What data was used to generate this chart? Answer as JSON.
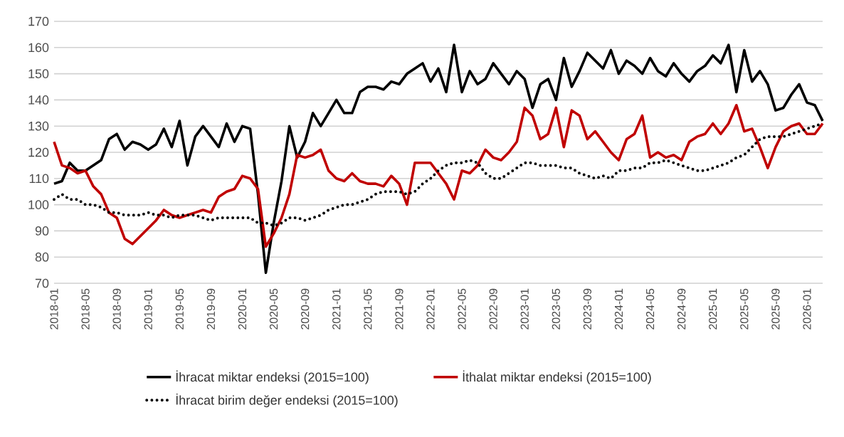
{
  "chart_data": {
    "type": "line",
    "x": [
      "2018-01",
      "2018-02",
      "2018-03",
      "2018-04",
      "2018-05",
      "2018-06",
      "2018-07",
      "2018-08",
      "2018-09",
      "2018-10",
      "2018-11",
      "2018-12",
      "2019-01",
      "2019-02",
      "2019-03",
      "2019-04",
      "2019-05",
      "2019-06",
      "2019-07",
      "2019-08",
      "2019-09",
      "2019-10",
      "2019-11",
      "2019-12",
      "2020-01",
      "2020-02",
      "2020-03",
      "2020-04",
      "2020-05",
      "2020-06",
      "2020-07",
      "2020-08",
      "2020-09",
      "2020-10",
      "2020-11",
      "2020-12",
      "2021-01",
      "2021-02",
      "2021-03",
      "2021-04",
      "2021-05",
      "2021-06",
      "2021-07",
      "2021-08",
      "2021-09",
      "2021-10",
      "2021-11",
      "2021-12",
      "2022-01",
      "2022-02",
      "2022-03",
      "2022-04",
      "2022-05",
      "2022-06",
      "2022-07",
      "2022-08",
      "2022-09",
      "2022-10",
      "2022-11",
      "2022-12",
      "2023-01",
      "2023-02",
      "2023-03",
      "2023-04",
      "2023-05",
      "2023-06",
      "2023-07",
      "2023-08",
      "2023-09",
      "2023-10",
      "2023-11",
      "2023-12",
      "2024-01",
      "2024-02",
      "2024-03",
      "2024-04",
      "2024-05",
      "2024-06",
      "2024-07",
      "2024-08",
      "2024-09",
      "2024-10",
      "2024-11",
      "2024-12",
      "2025-01",
      "2025-02",
      "2025-03",
      "2025-04",
      "2025-05",
      "2025-06",
      "2025-07",
      "2025-08",
      "2025-09",
      "2025-10",
      "2025-11",
      "2025-12",
      "2026-01",
      "2026-02",
      "2026-03"
    ],
    "series": [
      {
        "name": "İhracat miktar endeksi (2015=100)",
        "color": "#000000",
        "line_style": "solid",
        "values": [
          108,
          109,
          116,
          113,
          113,
          115,
          117,
          125,
          127,
          121,
          124,
          123,
          121,
          123,
          129,
          122,
          132,
          115,
          126,
          130,
          126,
          122,
          131,
          124,
          130,
          129,
          104,
          74,
          93,
          109,
          130,
          118,
          124,
          135,
          130,
          135,
          140,
          135,
          135,
          143,
          145,
          145,
          144,
          147,
          146,
          150,
          152,
          154,
          147,
          152,
          143,
          161,
          143,
          151,
          146,
          148,
          154,
          150,
          146,
          151,
          148,
          137,
          146,
          148,
          140,
          156,
          145,
          151,
          158,
          155,
          152,
          159,
          150,
          155,
          153,
          150,
          156,
          151,
          149,
          154,
          150,
          147,
          151,
          153,
          157,
          154,
          161,
          143,
          159,
          147,
          151,
          146,
          136,
          137,
          142,
          146,
          139,
          138,
          132
        ]
      },
      {
        "name": "İthalat miktar endeksi (2015=100)",
        "color": "#c00000",
        "line_style": "solid",
        "values": [
          124,
          115,
          114,
          112,
          113,
          107,
          104,
          97,
          95,
          87,
          85,
          88,
          91,
          94,
          98,
          96,
          95,
          96,
          97,
          98,
          97,
          103,
          105,
          106,
          111,
          110,
          106,
          84,
          89,
          95,
          104,
          119,
          118,
          119,
          121,
          113,
          110,
          109,
          112,
          109,
          108,
          108,
          107,
          111,
          108,
          100,
          116,
          116,
          116,
          112,
          108,
          102,
          113,
          112,
          115,
          121,
          118,
          117,
          120,
          124,
          137,
          134,
          125,
          127,
          137,
          122,
          136,
          134,
          125,
          128,
          124,
          120,
          117,
          125,
          127,
          134,
          118,
          120,
          118,
          119,
          117,
          124,
          126,
          127,
          131,
          127,
          131,
          138,
          128,
          129,
          122,
          114,
          122,
          128,
          130,
          131,
          127,
          127,
          131
        ]
      },
      {
        "name": "İhracat birim değer endeksi (2015=100)",
        "color": "#000000",
        "line_style": "dotted",
        "values": [
          102,
          104,
          102,
          102,
          100,
          100,
          99,
          97,
          97,
          96,
          96,
          96,
          97,
          96,
          96,
          95,
          96,
          96,
          96,
          95,
          94,
          95,
          95,
          95,
          95,
          95,
          93,
          93,
          92,
          93,
          95,
          95,
          94,
          95,
          96,
          98,
          99,
          100,
          100,
          101,
          102,
          104,
          105,
          105,
          105,
          104,
          105,
          108,
          110,
          113,
          115,
          116,
          116,
          117,
          116,
          112,
          110,
          110,
          112,
          114,
          116,
          116,
          115,
          115,
          115,
          114,
          114,
          112,
          111,
          110,
          111,
          110,
          113,
          113,
          114,
          114,
          116,
          116,
          117,
          116,
          115,
          114,
          113,
          113,
          114,
          115,
          116,
          118,
          119,
          122,
          125,
          126,
          126,
          126,
          127,
          128,
          129,
          130,
          131
        ]
      }
    ],
    "xlim": [
      "2018-01",
      "2026-03"
    ],
    "xticks": [
      "2018-01",
      "2018-05",
      "2018-09",
      "2019-01",
      "2019-05",
      "2019-09",
      "2020-01",
      "2020-05",
      "2020-09",
      "2021-01",
      "2021-05",
      "2021-09",
      "2022-01",
      "2022-05",
      "2022-09",
      "2023-01",
      "2023-05",
      "2023-09",
      "2024-01",
      "2024-05",
      "2024-09",
      "2025-01",
      "2025-05",
      "2025-09",
      "2026-01"
    ],
    "ylim": [
      70,
      170
    ],
    "yticks": [
      70,
      80,
      90,
      100,
      110,
      120,
      130,
      140,
      150,
      160,
      170
    ],
    "grid": "y",
    "legend": "bottom"
  }
}
